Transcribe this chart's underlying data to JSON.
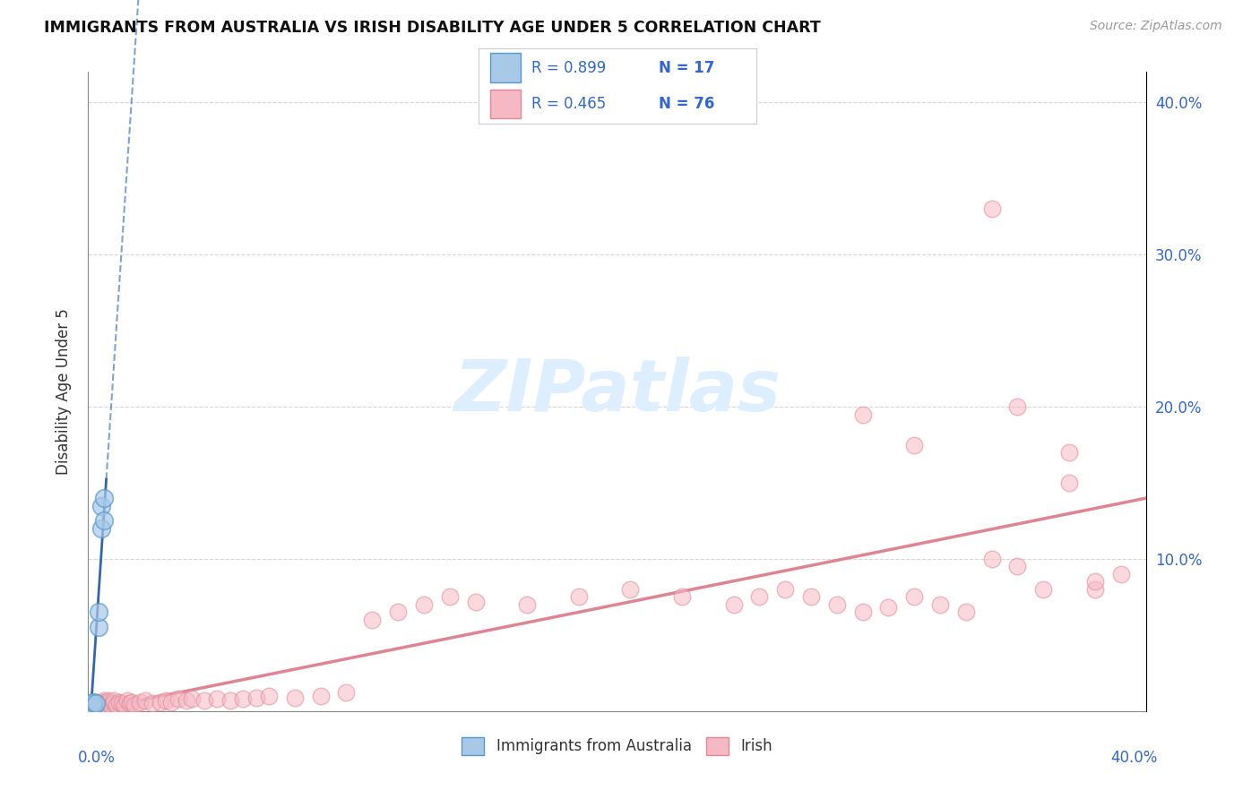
{
  "title": "IMMIGRANTS FROM AUSTRALIA VS IRISH DISABILITY AGE UNDER 5 CORRELATION CHART",
  "source": "Source: ZipAtlas.com",
  "ylabel": "Disability Age Under 5",
  "legend_r1": "R = 0.899",
  "legend_n1": "N = 17",
  "legend_r2": "R = 0.465",
  "legend_n2": "N = 76",
  "blue_fill": "#a8c8e8",
  "blue_edge": "#5599cc",
  "pink_fill": "#f5b8c4",
  "pink_edge": "#e08898",
  "blue_line_color": "#3366aa",
  "pink_line_color": "#dd7788",
  "text_color_blue": "#3366cc",
  "text_color_dark": "#333333",
  "grid_color": "#cccccc",
  "background_color": "#ffffff",
  "watermark_color": "#ddeeff",
  "xlim": [
    0.0,
    0.41
  ],
  "ylim": [
    0.0,
    0.42
  ],
  "aus_x": [
    0.0003,
    0.0005,
    0.0006,
    0.0008,
    0.001,
    0.001,
    0.0012,
    0.0015,
    0.002,
    0.002,
    0.003,
    0.004,
    0.004,
    0.005,
    0.005,
    0.006,
    0.006
  ],
  "aus_y": [
    0.002,
    0.003,
    0.003,
    0.004,
    0.003,
    0.005,
    0.004,
    0.005,
    0.003,
    0.006,
    0.005,
    0.055,
    0.065,
    0.12,
    0.135,
    0.125,
    0.14
  ],
  "irish_x": [
    0.001,
    0.001,
    0.002,
    0.002,
    0.003,
    0.003,
    0.004,
    0.004,
    0.005,
    0.005,
    0.006,
    0.006,
    0.007,
    0.007,
    0.008,
    0.008,
    0.009,
    0.01,
    0.01,
    0.011,
    0.012,
    0.013,
    0.014,
    0.015,
    0.016,
    0.017,
    0.018,
    0.02,
    0.022,
    0.025,
    0.028,
    0.03,
    0.032,
    0.035,
    0.038,
    0.04,
    0.045,
    0.05,
    0.055,
    0.06,
    0.065,
    0.07,
    0.08,
    0.09,
    0.1,
    0.11,
    0.12,
    0.13,
    0.14,
    0.15,
    0.17,
    0.19,
    0.21,
    0.23,
    0.25,
    0.26,
    0.27,
    0.28,
    0.29,
    0.3,
    0.31,
    0.32,
    0.33,
    0.34,
    0.35,
    0.36,
    0.37,
    0.38,
    0.39,
    0.3,
    0.32,
    0.35,
    0.36,
    0.38,
    0.39,
    0.4
  ],
  "irish_y": [
    0.003,
    0.004,
    0.003,
    0.005,
    0.004,
    0.006,
    0.003,
    0.005,
    0.004,
    0.006,
    0.003,
    0.007,
    0.004,
    0.006,
    0.005,
    0.007,
    0.004,
    0.005,
    0.007,
    0.004,
    0.006,
    0.005,
    0.004,
    0.007,
    0.005,
    0.006,
    0.004,
    0.006,
    0.007,
    0.005,
    0.006,
    0.007,
    0.006,
    0.008,
    0.007,
    0.008,
    0.007,
    0.008,
    0.007,
    0.008,
    0.009,
    0.01,
    0.009,
    0.01,
    0.012,
    0.06,
    0.065,
    0.07,
    0.075,
    0.072,
    0.07,
    0.075,
    0.08,
    0.075,
    0.07,
    0.075,
    0.08,
    0.075,
    0.07,
    0.065,
    0.068,
    0.075,
    0.07,
    0.065,
    0.1,
    0.095,
    0.08,
    0.15,
    0.08,
    0.195,
    0.175,
    0.33,
    0.2,
    0.17,
    0.085,
    0.09
  ]
}
